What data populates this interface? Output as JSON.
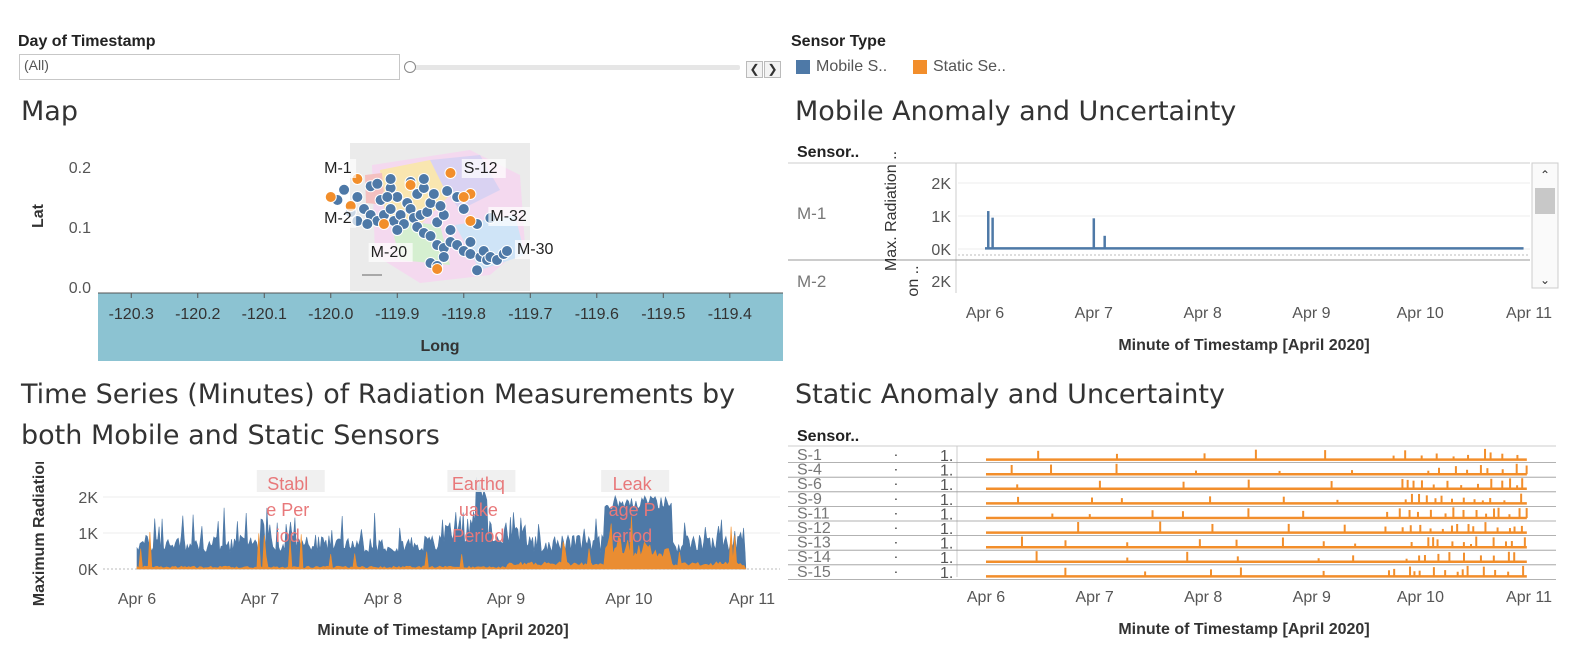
{
  "filters": {
    "day_title": "Day of Timestamp",
    "day_value": "(All)",
    "prev": "❮",
    "next": "❯"
  },
  "legend": {
    "title": "Sensor Type",
    "items": [
      {
        "label": "Mobile S..",
        "color": "#4e79a7"
      },
      {
        "label": "Static Se..",
        "color": "#f28e2b"
      }
    ]
  },
  "map_panel": {
    "title": "Map"
  },
  "mobile_panel": {
    "title": "Mobile Anomaly and Uncertainty"
  },
  "ts_panel": {
    "title_line1": "Time Series (Minutes) of Radiation Measurements by",
    "title_line2": "both Mobile and Static Sensors"
  },
  "static_panel": {
    "title": "Static Anomaly and Uncertainty"
  },
  "colors": {
    "mobile": "#4e79a7",
    "static": "#f28e2b",
    "annotation": "#e8787a",
    "axis_band": "#8cc3d2"
  },
  "chart_data": [
    {
      "type": "scatter",
      "name": "map",
      "xlabel": "Long",
      "ylabel": "Lat",
      "xlim": [
        -120.35,
        -119.32
      ],
      "ylim": [
        -0.01,
        0.24
      ],
      "x_ticks": [
        "-120.3",
        "-120.2",
        "-120.1",
        "-120.0",
        "-119.9",
        "-119.8",
        "-119.7",
        "-119.6",
        "-119.5",
        "-119.4"
      ],
      "y_ticks": [
        "0.2",
        "0.1",
        "0.0"
      ],
      "labels": [
        {
          "text": "M-1",
          "x": -120.01,
          "y": 0.19
        },
        {
          "text": "S-12",
          "x": -119.8,
          "y": 0.19
        },
        {
          "text": "M-2",
          "x": -120.01,
          "y": 0.107
        },
        {
          "text": "M-32",
          "x": -119.76,
          "y": 0.11
        },
        {
          "text": "M-20",
          "x": -119.94,
          "y": 0.05
        },
        {
          "text": "M-30",
          "x": -119.72,
          "y": 0.055
        }
      ],
      "series": [
        {
          "name": "Mobile",
          "points": [
            [
              -119.98,
              0.162
            ],
            [
              -119.96,
              0.15
            ],
            [
              -119.94,
              0.168
            ],
            [
              -119.93,
              0.172
            ],
            [
              -119.91,
              0.165
            ],
            [
              -119.9,
              0.15
            ],
            [
              -119.885,
              0.14
            ],
            [
              -119.87,
              0.155
            ],
            [
              -119.86,
              0.165
            ],
            [
              -119.95,
              0.13
            ],
            [
              -119.94,
              0.12
            ],
            [
              -119.93,
              0.11
            ],
            [
              -119.92,
              0.12
            ],
            [
              -119.91,
              0.13
            ],
            [
              -119.905,
              0.11
            ],
            [
              -119.895,
              0.12
            ],
            [
              -119.88,
              0.13
            ],
            [
              -119.875,
              0.115
            ],
            [
              -119.865,
              0.12
            ],
            [
              -119.855,
              0.125
            ],
            [
              -119.85,
              0.14
            ],
            [
              -119.845,
              0.155
            ],
            [
              -119.84,
              0.108
            ],
            [
              -119.83,
              0.12
            ],
            [
              -119.825,
              0.16
            ],
            [
              -119.81,
              0.15
            ],
            [
              -119.8,
              0.13
            ],
            [
              -119.96,
              0.11
            ],
            [
              -119.945,
              0.105
            ],
            [
              -119.925,
              0.145
            ],
            [
              -119.915,
              0.15
            ],
            [
              -119.89,
              0.105
            ],
            [
              -119.87,
              0.1
            ],
            [
              -119.86,
              0.09
            ],
            [
              -119.85,
              0.085
            ],
            [
              -119.84,
              0.07
            ],
            [
              -119.83,
              0.065
            ],
            [
              -119.82,
              0.075
            ],
            [
              -119.81,
              0.07
            ],
            [
              -119.8,
              0.06
            ],
            [
              -119.79,
              0.055
            ],
            [
              -119.775,
              0.05
            ],
            [
              -119.77,
              0.06
            ],
            [
              -119.765,
              0.045
            ],
            [
              -119.76,
              0.05
            ],
            [
              -119.75,
              0.045
            ],
            [
              -119.74,
              0.055
            ],
            [
              -119.79,
              0.075
            ],
            [
              -119.85,
              0.04
            ],
            [
              -119.84,
              0.035
            ],
            [
              -119.83,
              0.05
            ],
            [
              -119.78,
              0.028
            ],
            [
              -119.76,
              0.115
            ],
            [
              -119.78,
              0.105
            ],
            [
              -119.82,
              0.095
            ],
            [
              -119.91,
              0.18
            ],
            [
              -119.88,
              0.175
            ],
            [
              -119.86,
              0.18
            ],
            [
              -119.99,
              0.145
            ],
            [
              -119.97,
              0.125
            ],
            [
              -119.835,
              0.135
            ],
            [
              -119.9,
              0.095
            ],
            [
              -119.735,
              0.06
            ]
          ]
        },
        {
          "name": "Static",
          "points": [
            [
              -119.82,
              0.19
            ],
            [
              -119.79,
              0.155
            ],
            [
              -119.8,
              0.15
            ],
            [
              -119.88,
              0.17
            ],
            [
              -119.97,
              0.135
            ],
            [
              -120.0,
              0.15
            ],
            [
              -119.96,
              0.18
            ],
            [
              -119.84,
              0.03
            ],
            [
              -119.79,
              0.11
            ],
            [
              -119.92,
              0.105
            ]
          ]
        }
      ]
    },
    {
      "type": "line",
      "name": "mobile_anomaly",
      "xlabel": "Minute of Timestamp [April 2020]",
      "ylabel": "Max. Radiation ..",
      "ylabel_partial": "on ..",
      "row_header": "Sensor..",
      "x_ticks": [
        "Apr 6",
        "Apr 7",
        "Apr 8",
        "Apr 9",
        "Apr 10",
        "Apr 11"
      ],
      "y_ticks": [
        "2K",
        "1K",
        "0K"
      ],
      "rows": [
        {
          "sensor": "M-1",
          "baseline": 20,
          "spikes": [
            {
              "day": 6.03,
              "value": 1150
            },
            {
              "day": 6.07,
              "value": 950
            },
            {
              "day": 7.0,
              "value": 930
            },
            {
              "day": 7.1,
              "value": 400
            }
          ],
          "end_day": 10.95
        },
        {
          "sensor": "M-2"
        }
      ]
    },
    {
      "type": "area",
      "name": "time_series",
      "xlabel": "Minute of Timestamp [April 2020]",
      "ylabel": "Maximum Radiation ..",
      "x_ticks": [
        "Apr 6",
        "Apr 7",
        "Apr 8",
        "Apr 9",
        "Apr 10",
        "Apr 11"
      ],
      "y_ticks": [
        "2K",
        "1K",
        "0K"
      ],
      "ylim": [
        0,
        2600
      ],
      "annotations": [
        {
          "text": "Stabl e Per iod",
          "lines": [
            "Stabl",
            "e Per",
            "iod"
          ],
          "day": 7.25
        },
        {
          "text": "Earthq uake Period",
          "lines": [
            "Earthq",
            "uake",
            "Period"
          ],
          "day": 8.8
        },
        {
          "text": "Leak age P eriod",
          "lines": [
            "Leak",
            "age P",
            "eriod"
          ],
          "day": 10.05
        }
      ]
    },
    {
      "type": "line",
      "name": "static_anomaly",
      "xlabel": "Minute of Timestamp [April 2020]",
      "row_header": "Sensor..",
      "x_ticks": [
        "Apr 6",
        "Apr 7",
        "Apr 8",
        "Apr 9",
        "Apr 10",
        "Apr 11"
      ],
      "dot_label": ".",
      "value_label": "1.",
      "sensors": [
        "S-1",
        "S-4",
        "S-6",
        "S-9",
        "S-11",
        "S-12",
        "S-13",
        "S-14",
        "S-15"
      ]
    }
  ]
}
